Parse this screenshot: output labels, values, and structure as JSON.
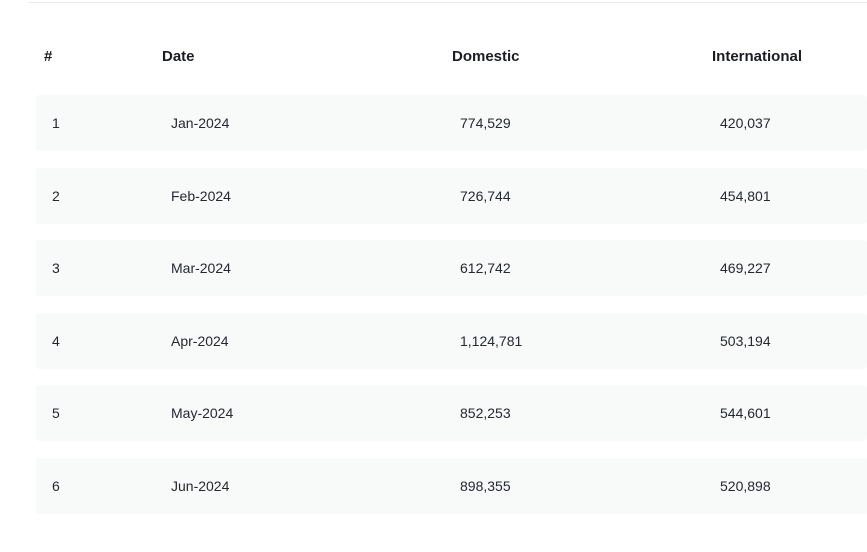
{
  "table": {
    "headers": {
      "index": "#",
      "date": "Date",
      "domestic": "Domestic",
      "international": "International"
    },
    "rows": [
      {
        "index": "1",
        "date": "Jan-2024",
        "domestic": "774,529",
        "international": "420,037"
      },
      {
        "index": "2",
        "date": "Feb-2024",
        "domestic": "726,744",
        "international": "454,801"
      },
      {
        "index": "3",
        "date": "Mar-2024",
        "domestic": "612,742",
        "international": "469,227"
      },
      {
        "index": "4",
        "date": "Apr-2024",
        "domestic": "1,124,781",
        "international": "503,194"
      },
      {
        "index": "5",
        "date": "May-2024",
        "domestic": "852,253",
        "international": "544,601"
      },
      {
        "index": "6",
        "date": "Jun-2024",
        "domestic": "898,355",
        "international": "520,898"
      }
    ]
  }
}
